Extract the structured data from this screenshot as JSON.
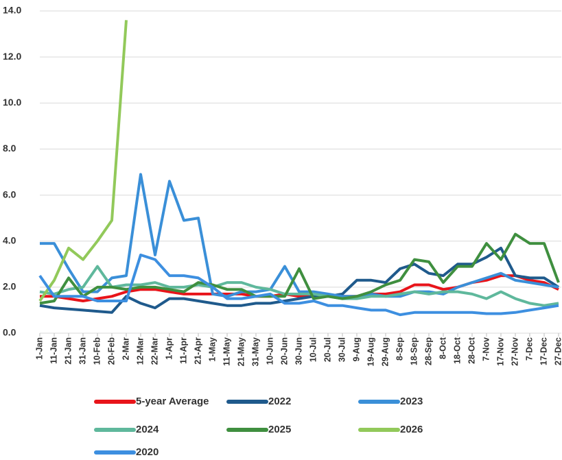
{
  "chart_data": {
    "type": "line",
    "categories": [
      "1-Jan",
      "11-Jan",
      "21-Jan",
      "31-Jan",
      "10-Feb",
      "20-Feb",
      "2-Mar",
      "12-Mar",
      "22-Mar",
      "1-Apr",
      "11-Apr",
      "21-Apr",
      "1-May",
      "11-May",
      "21-May",
      "31-May",
      "10-Jun",
      "20-Jun",
      "30-Jun",
      "10-Jul",
      "20-Jul",
      "30-Jul",
      "9-Aug",
      "19-Aug",
      "29-Aug",
      "8-Sep",
      "18-Sep",
      "28-Sep",
      "8-Oct",
      "18-Oct",
      "28-Oct",
      "7-Nov",
      "17-Nov",
      "27-Nov",
      "7-Dec",
      "17-Dec",
      "27-Dec"
    ],
    "series": [
      {
        "name": "5-year Average",
        "color": "#e8141a",
        "values": [
          1.6,
          1.6,
          1.5,
          1.4,
          1.5,
          1.6,
          1.8,
          1.9,
          1.9,
          1.8,
          1.7,
          1.7,
          1.7,
          1.7,
          1.7,
          1.6,
          1.6,
          1.7,
          1.6,
          1.6,
          1.6,
          1.6,
          1.6,
          1.7,
          1.7,
          1.8,
          2.1,
          2.1,
          1.9,
          2.0,
          2.2,
          2.3,
          2.5,
          2.5,
          2.3,
          2.2,
          1.9
        ]
      },
      {
        "name": "2022",
        "color": "#1f5a8c",
        "values": [
          1.2,
          1.1,
          1.05,
          1.0,
          0.95,
          0.9,
          1.6,
          1.3,
          1.1,
          1.5,
          1.5,
          1.4,
          1.3,
          1.2,
          1.2,
          1.3,
          1.3,
          1.4,
          1.5,
          1.6,
          1.6,
          1.7,
          2.3,
          2.3,
          2.2,
          2.8,
          3.0,
          2.6,
          2.5,
          3.0,
          3.0,
          3.3,
          3.7,
          2.5,
          2.4,
          2.4,
          2.0
        ]
      },
      {
        "name": "2023",
        "color": "#3a8fd8",
        "values": [
          3.9,
          3.9,
          2.8,
          1.8,
          1.8,
          2.4,
          2.5,
          6.9,
          3.4,
          6.6,
          4.9,
          5.0,
          1.7,
          1.6,
          1.8,
          1.8,
          1.9,
          2.9,
          1.8,
          1.8,
          1.7,
          1.6,
          1.6,
          1.7,
          1.6,
          1.6,
          1.8,
          1.8,
          1.7,
          2.0,
          2.2,
          2.4,
          2.6,
          2.3,
          2.2,
          2.1,
          2.0
        ]
      },
      {
        "name": "2024",
        "color": "#5fb89c",
        "values": [
          1.8,
          1.7,
          1.9,
          2.0,
          2.9,
          2.0,
          2.1,
          2.1,
          2.2,
          2.0,
          2.0,
          2.1,
          2.0,
          2.2,
          2.2,
          2.0,
          1.9,
          1.7,
          1.7,
          1.7,
          1.6,
          1.5,
          1.5,
          1.6,
          1.6,
          1.7,
          1.8,
          1.7,
          1.8,
          1.8,
          1.7,
          1.5,
          1.8,
          1.5,
          1.3,
          1.2,
          1.3
        ]
      },
      {
        "name": "2025",
        "color": "#3f8f3f",
        "values": [
          1.3,
          1.4,
          2.4,
          1.6,
          2.0,
          2.0,
          1.9,
          2.0,
          2.0,
          1.9,
          1.8,
          2.2,
          2.1,
          1.9,
          1.9,
          1.6,
          1.6,
          1.6,
          2.8,
          1.5,
          1.6,
          1.5,
          1.6,
          1.8,
          2.1,
          2.3,
          3.2,
          3.1,
          2.2,
          2.9,
          2.9,
          3.9,
          3.2,
          4.3,
          3.9,
          3.9,
          2.2
        ]
      },
      {
        "name": "2026",
        "color": "#92c95a",
        "values": [
          1.4,
          2.3,
          3.7,
          3.2,
          4.0,
          4.9,
          13.6,
          null,
          null,
          null,
          null,
          null,
          null,
          null,
          null,
          null,
          null,
          null,
          null,
          null,
          null,
          null,
          null,
          null,
          null,
          null,
          null,
          null,
          null,
          null,
          null,
          null,
          null,
          null,
          null,
          null,
          null
        ]
      },
      {
        "name": "2020",
        "color": "#3d8fe0",
        "values": [
          2.5,
          1.6,
          1.6,
          1.6,
          1.4,
          1.4,
          1.4,
          3.4,
          3.2,
          2.5,
          2.5,
          2.4,
          2.0,
          1.5,
          1.5,
          1.6,
          1.7,
          1.3,
          1.3,
          1.4,
          1.2,
          1.2,
          1.1,
          1.0,
          1.0,
          0.8,
          0.9,
          0.9,
          0.9,
          0.9,
          0.9,
          0.85,
          0.85,
          0.9,
          1.0,
          1.1,
          1.2
        ]
      }
    ],
    "ylim": [
      0,
      14
    ],
    "yticks": [
      {
        "value": 0,
        "label": "0.0"
      },
      {
        "value": 2,
        "label": "2.0"
      },
      {
        "value": 4,
        "label": "4.0"
      },
      {
        "value": 6,
        "label": "6.0"
      },
      {
        "value": 8,
        "label": "8.0"
      },
      {
        "value": 10,
        "label": "10.0"
      },
      {
        "value": 12,
        "label": "12.0"
      },
      {
        "value": 14,
        "label": "14.0"
      }
    ],
    "grid": true
  }
}
